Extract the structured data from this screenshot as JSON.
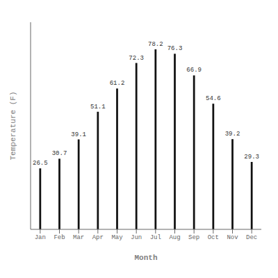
{
  "chart_data": {
    "type": "bar",
    "categories": [
      "Jan",
      "Feb",
      "Mar",
      "Apr",
      "May",
      "Jun",
      "Jul",
      "Aug",
      "Sep",
      "Oct",
      "Nov",
      "Dec"
    ],
    "values": [
      26.5,
      30.7,
      39.1,
      51.1,
      61.2,
      72.3,
      78.2,
      76.3,
      66.9,
      54.6,
      39.2,
      29.3
    ],
    "color": "#111111",
    "xlabel": "Month",
    "ylabel": "Temperature (F)",
    "ylim": [
      0,
      90
    ],
    "data_labels": true,
    "tick_labels": "x"
  }
}
